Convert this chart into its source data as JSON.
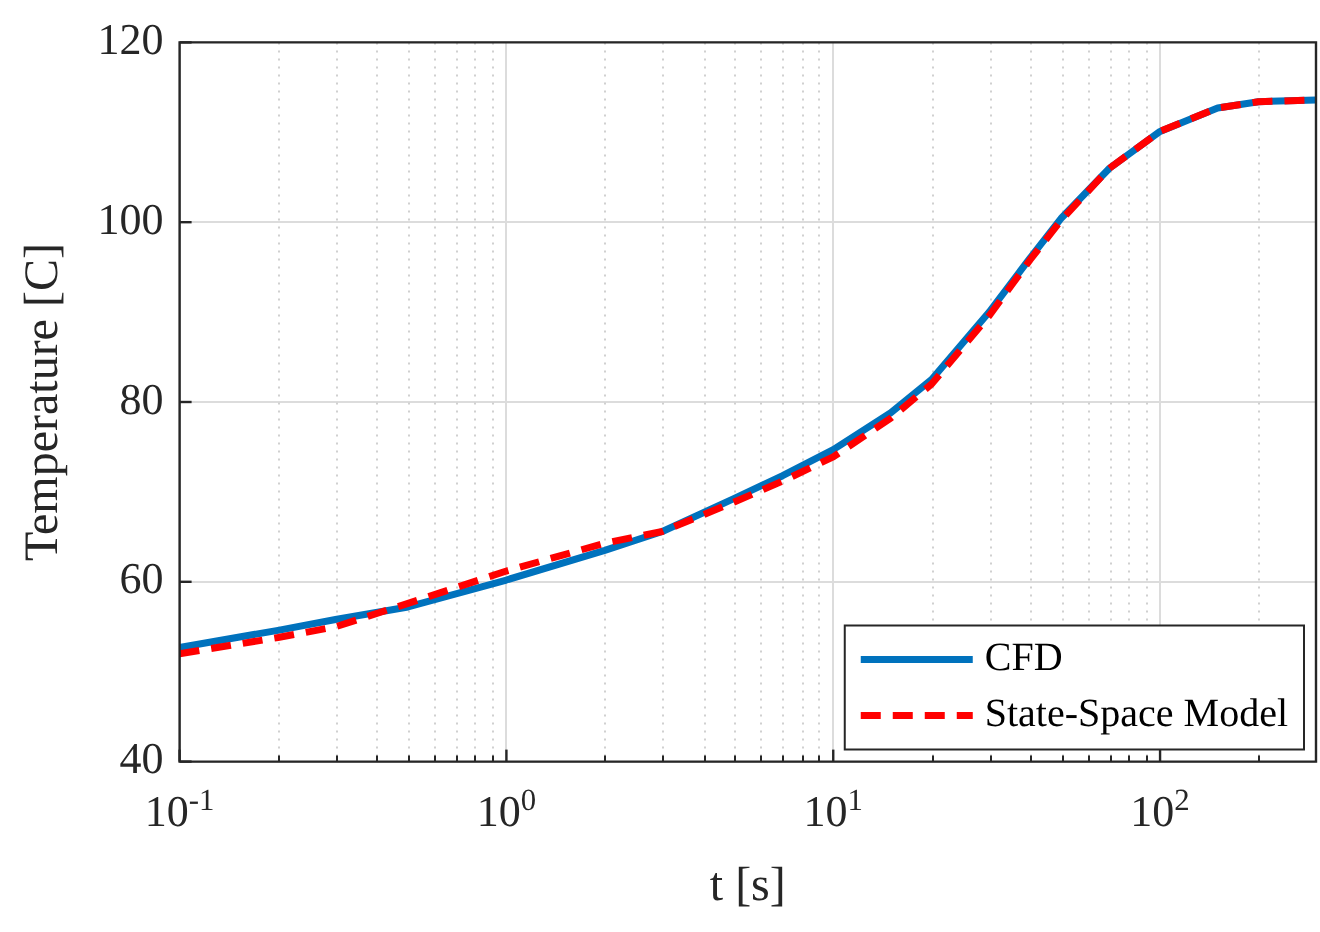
{
  "chart_data": {
    "type": "line",
    "xlabel": "t [s]",
    "ylabel": "Temperature [C]",
    "log": "x",
    "xlim": [
      0.1,
      300
    ],
    "xticks": [
      {
        "value": 0.1,
        "label": "10$^{-1}$"
      },
      {
        "value": 1,
        "label": "10$^{0}$"
      },
      {
        "value": 10,
        "label": "10$^{1}$"
      },
      {
        "value": 100,
        "label": "10$^{2}$"
      }
    ],
    "ylim": [
      40,
      120
    ],
    "yticks": [
      40,
      60,
      80,
      100,
      120
    ],
    "grid": true,
    "legend": "bottom right",
    "x": [
      0.1,
      0.2,
      0.3,
      0.5,
      1,
      2,
      3,
      5,
      7,
      10,
      15,
      20,
      30,
      40,
      50,
      70,
      100,
      150,
      200,
      300
    ],
    "series": [
      {
        "name": "CFD",
        "color": "#0072bd",
        "line_style": "solid",
        "values": [
          52.7,
          54.6,
          55.8,
          57.2,
          60.2,
          63.5,
          65.6,
          69.3,
          71.8,
          74.7,
          78.8,
          82.5,
          90,
          96,
          100.5,
          106,
          110.1,
          112.7,
          113.4,
          113.6
        ]
      },
      {
        "name": "State-Space Model",
        "color": "#ff0000",
        "line_style": "dashed",
        "values": [
          52,
          53.8,
          55,
          57.6,
          61.2,
          64.3,
          65.6,
          68.9,
          71.2,
          73.9,
          78.2,
          82,
          89.6,
          95.8,
          100.3,
          106,
          110.1,
          112.7,
          113.4,
          113.6
        ]
      }
    ]
  }
}
